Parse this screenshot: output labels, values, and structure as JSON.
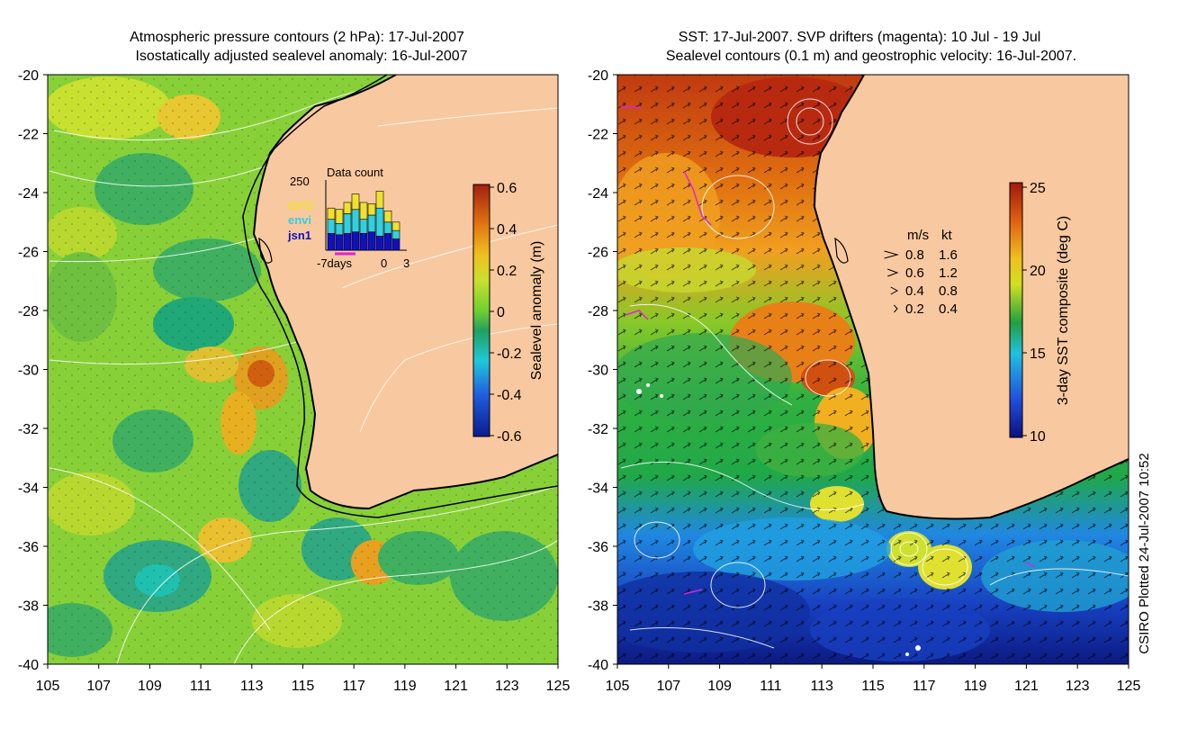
{
  "left_panel": {
    "title_line1": "Atmospheric pressure contours (2 hPa): 17-Jul-2007",
    "title_line2": "Isostatically adjusted sealevel anomaly: 16-Jul-2007",
    "colorbar_label": "Sealevel anomaly (m)",
    "colorbar_ticks": [
      "0.6",
      "0.4",
      "0.2",
      "0",
      "-0.2",
      "-0.4",
      "-0.6"
    ],
    "inset": {
      "title": "Data count",
      "ymax_label": "250",
      "legend": [
        {
          "label": "GFO",
          "color": "#f0e030"
        },
        {
          "label": "envi",
          "color": "#30d0e0"
        },
        {
          "label": "jsn1",
          "color": "#1010c0"
        }
      ],
      "xlabels": [
        "-7days",
        "0",
        "3"
      ],
      "bars": [
        {
          "jsn1": 60,
          "envi": 50,
          "gfo": 40
        },
        {
          "jsn1": 55,
          "envi": 40,
          "gfo": 50
        },
        {
          "jsn1": 60,
          "envi": 70,
          "gfo": 40
        },
        {
          "jsn1": 65,
          "envi": 80,
          "gfo": 55
        },
        {
          "jsn1": 60,
          "envi": 50,
          "gfo": 60
        },
        {
          "jsn1": 65,
          "envi": 60,
          "gfo": 40
        },
        {
          "jsn1": 50,
          "envi": 100,
          "gfo": 60
        },
        {
          "jsn1": 60,
          "envi": 40,
          "gfo": 40
        },
        {
          "jsn1": 40,
          "envi": 30,
          "gfo": 30
        }
      ]
    }
  },
  "right_panel": {
    "title_line1": "SST: 17-Jul-2007. SVP drifters (magenta): 10 Jul - 19 Jul",
    "title_line2": "Sealevel contours (0.1 m) and geostrophic velocity: 16-Jul-2007.",
    "colorbar_label": "3-day SST composite (deg C)",
    "colorbar_ticks": [
      "25",
      "20",
      "15",
      "10"
    ],
    "velocity_legend": {
      "header_ms": "m/s",
      "header_kt": "kt",
      "rows": [
        {
          "ms": "0.8",
          "kt": "1.6"
        },
        {
          "ms": "0.6",
          "kt": "1.2"
        },
        {
          "ms": "0.4",
          "kt": "0.8"
        },
        {
          "ms": "0.2",
          "kt": "0.4"
        }
      ]
    }
  },
  "axes": {
    "lon_ticks": [
      "105",
      "107",
      "109",
      "111",
      "113",
      "115",
      "117",
      "119",
      "121",
      "123",
      "125"
    ],
    "lat_ticks": [
      "-20",
      "-22",
      "-24",
      "-26",
      "-28",
      "-30",
      "-32",
      "-34",
      "-36",
      "-38",
      "-40"
    ]
  },
  "credit": "CSIRO Plotted 24-Jul-2007 10:52",
  "colors": {
    "land": "#f8c8a0",
    "coast": "#000000",
    "drifter": "#e020e0"
  }
}
